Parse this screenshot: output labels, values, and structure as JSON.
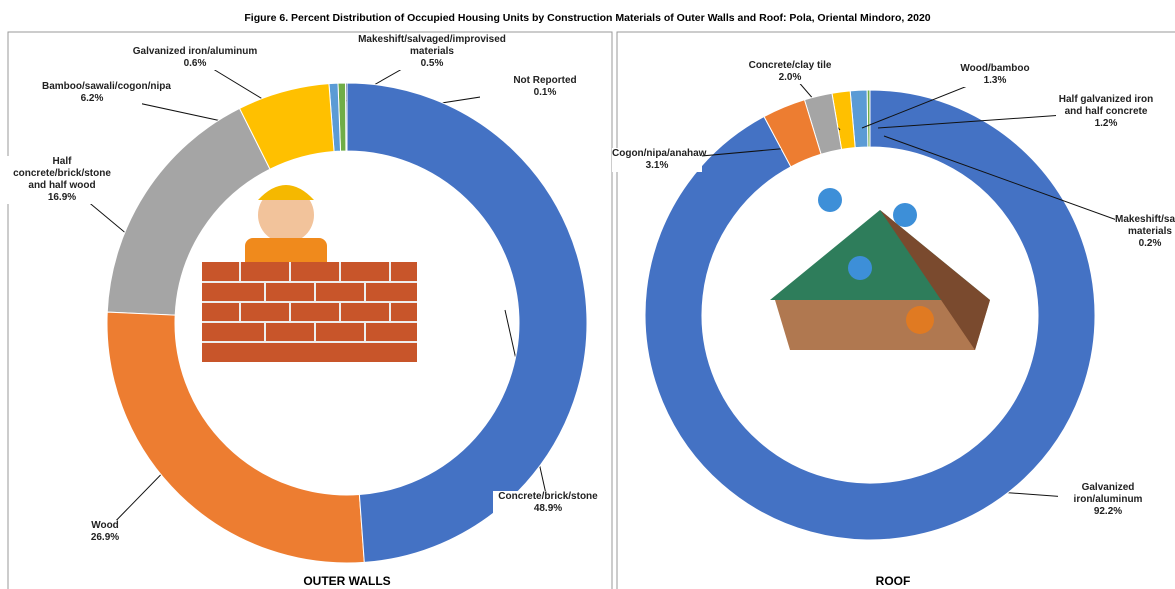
{
  "title": "Figure 6. Percent Distribution of Occupied Housing Units by Construction Materials of Outer Walls and Roof: Pola, Oriental Mindoro, 2020",
  "chart_data": [
    {
      "type": "donut",
      "title": "OUTER WALLS",
      "categories": [
        "Concrete/brick/stone",
        "Wood",
        "Half concrete/brick/stone and half wood",
        "Bamboo/sawali/cogon/nipa",
        "Galvanized iron/aluminum",
        "Makeshift/salvaged/improvised materials",
        "Not Reported"
      ],
      "values": [
        48.9,
        26.9,
        16.9,
        6.2,
        0.6,
        0.5,
        0.1
      ],
      "value_labels": [
        "48.9%",
        "26.9%",
        "16.9%",
        "6.2%",
        "0.6%",
        "0.5%",
        "0.1%"
      ],
      "colors": [
        "#4472c4",
        "#ed7d31",
        "#a5a5a5",
        "#ffc000",
        "#5b9bd5",
        "#70ad47",
        "#264478"
      ]
    },
    {
      "type": "donut",
      "title": "ROOF",
      "categories": [
        "Cogon/nipa/anahaw",
        "Concrete/clay tile",
        "Wood/bamboo",
        "Half galvanized iron and half concrete",
        "Makeshift/salvaged/improvised materials",
        "Galvanized iron/aluminum"
      ],
      "values": [
        3.1,
        2.0,
        1.3,
        1.2,
        0.2,
        92.2
      ],
      "value_labels": [
        "3.1%",
        "2.0%",
        "1.3%",
        "1.2%",
        "0.2%",
        "92.2%"
      ],
      "colors": [
        "#ed7d31",
        "#a5a5a5",
        "#ffc000",
        "#5b9bd5",
        "#70ad47",
        "#4472c4"
      ]
    }
  ]
}
